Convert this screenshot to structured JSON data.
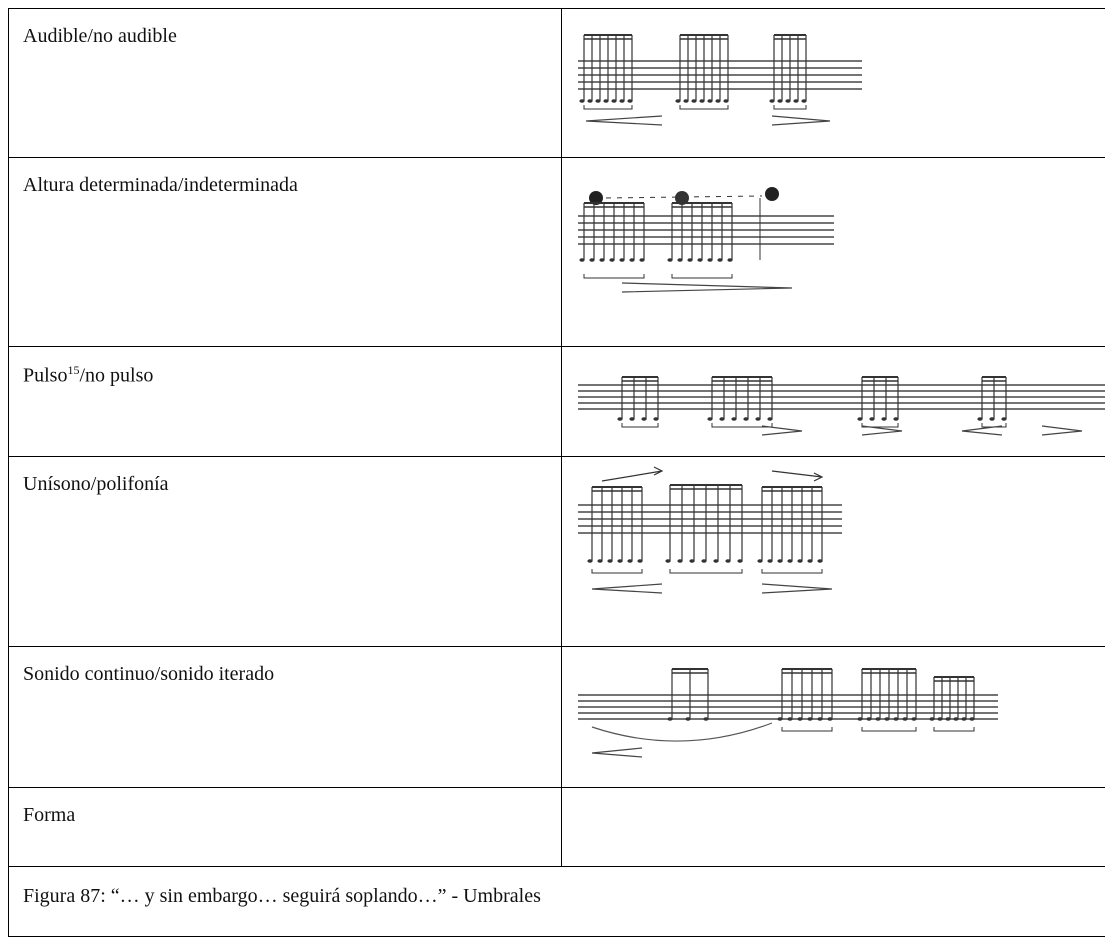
{
  "table": {
    "rows": [
      {
        "label": "Audible/no audible"
      },
      {
        "label": "Altura determinada/indeterminada"
      },
      {
        "label_before": "Pulso",
        "superscript": "15",
        "label_after": "/no pulso"
      },
      {
        "label": "Unísono/polifonía"
      },
      {
        "label": "Sonido continuo/sonido iterado"
      },
      {
        "label": "Forma"
      }
    ]
  },
  "caption": "Figura 87: “… y sin embargo… seguirá soplando…” - Umbrales"
}
